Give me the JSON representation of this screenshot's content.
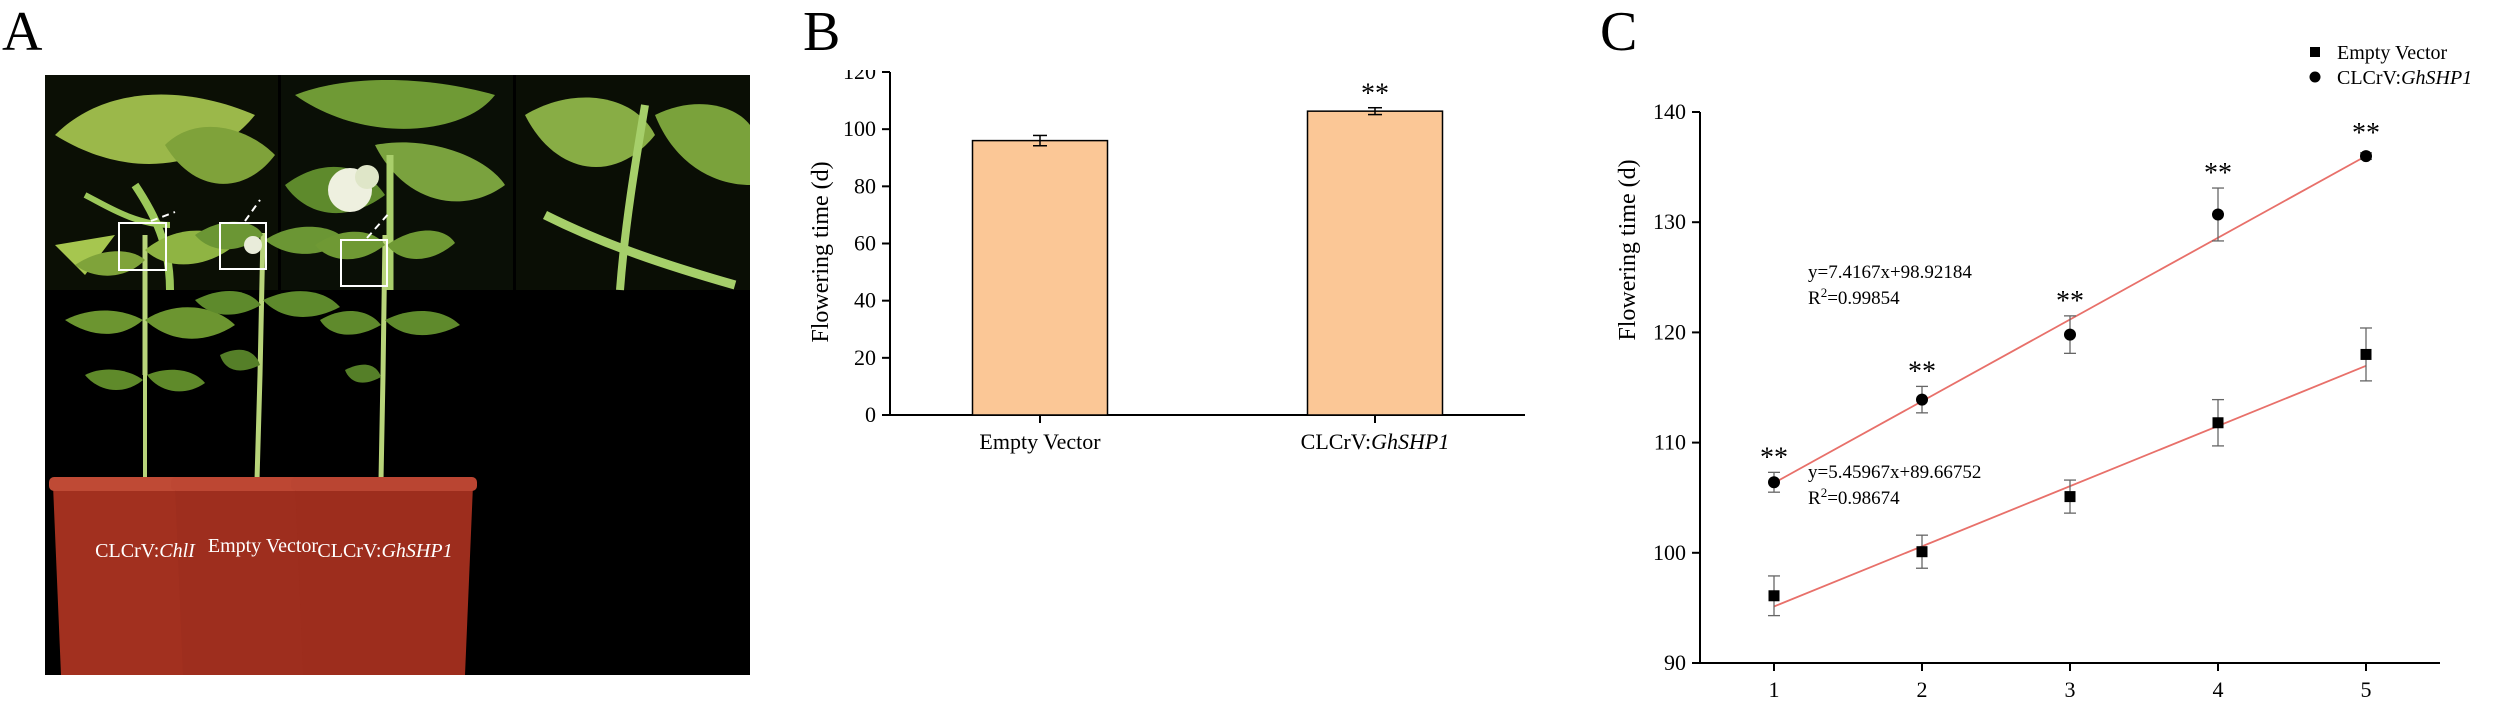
{
  "panels": {
    "a_letter": "A",
    "b_letter": "B",
    "c_letter": "C"
  },
  "photo": {
    "pot_labels": [
      {
        "prefix": "CLCrV:",
        "gene": "ChlI"
      },
      {
        "prefix": "Empty Vector",
        "gene": ""
      },
      {
        "prefix": "CLCrV:",
        "gene": "GhSHP1"
      }
    ],
    "colors": {
      "background": "#000000",
      "pot": "#a2301f",
      "leaf": "#6f9a35",
      "box": "#ffffff"
    }
  },
  "chart_data": [
    {
      "type": "bar",
      "panel": "B",
      "categories": [
        {
          "prefix": "Empty Vector",
          "gene": ""
        },
        {
          "prefix": "CLCrV:",
          "gene": "GhSHP1"
        }
      ],
      "values": [
        96,
        106.3
      ],
      "errors": [
        1.8,
        1.2
      ],
      "significance": [
        "",
        "**"
      ],
      "ylabel": "Flowering time (d)",
      "ylim": [
        0,
        120
      ],
      "yticks": [
        0,
        20,
        40,
        60,
        80,
        100,
        120
      ],
      "bar_color": "#fbc796",
      "grid": false
    },
    {
      "type": "scatter",
      "panel": "C",
      "x": [
        1,
        2,
        3,
        4,
        5
      ],
      "ylabel": "Flowering time (d)",
      "xlim": [
        0.5,
        5.5
      ],
      "ylim": [
        90,
        140
      ],
      "yticks": [
        90,
        100,
        110,
        120,
        130,
        140
      ],
      "xticks": [
        1,
        2,
        3,
        4,
        5
      ],
      "grid": false,
      "legend_position": "top-right",
      "line_color": "#e8706a",
      "series": [
        {
          "legend": {
            "prefix": "Empty Vector",
            "gene": ""
          },
          "marker": "square",
          "values": [
            96.1,
            100.1,
            105.1,
            111.8,
            118.0
          ],
          "errors": [
            1.8,
            1.5,
            1.5,
            2.1,
            2.4
          ],
          "significance": [
            "",
            "",
            "",
            "",
            ""
          ],
          "fit": {
            "slope": 5.45967,
            "intercept": 89.66752
          },
          "equation": "y=5.45967x+89.66752",
          "r2_value": "=0.98674"
        },
        {
          "legend": {
            "prefix": "CLCrV:",
            "gene": "GhSHP1"
          },
          "marker": "circle",
          "values": [
            106.4,
            113.9,
            119.8,
            130.7,
            136.0
          ],
          "errors": [
            0.9,
            1.2,
            1.7,
            2.4,
            0.3
          ],
          "significance": [
            "**",
            "**",
            "**",
            "**",
            "**"
          ],
          "fit": {
            "slope": 7.4167,
            "intercept": 98.92184
          },
          "equation": "y=7.4167x+98.92184",
          "r2_value": "=0.99854"
        }
      ]
    }
  ]
}
